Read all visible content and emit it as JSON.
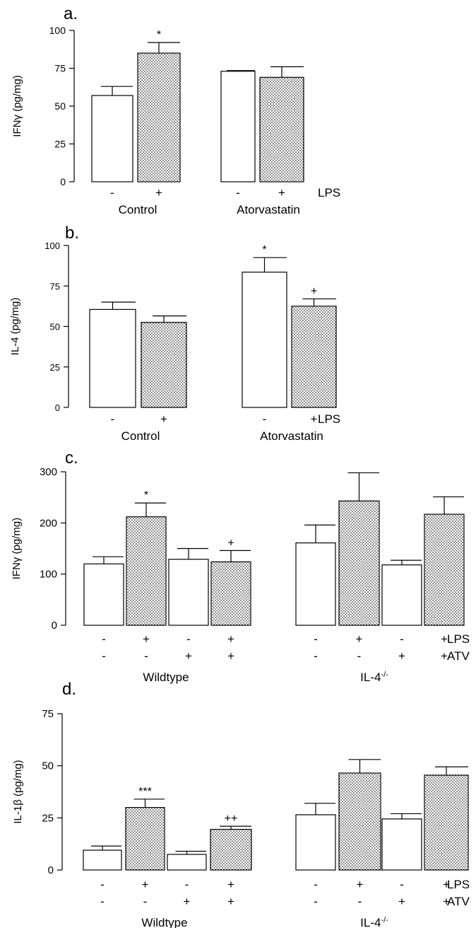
{
  "chart_data": [
    {
      "type": "bar",
      "panel_label": "a.",
      "ylabel": "IFNγ (pg/mg)",
      "ylim": [
        0,
        100
      ],
      "yticks": [
        0,
        25,
        50,
        75,
        100
      ],
      "groups": [
        {
          "name": "Control",
          "bars": [
            {
              "lps": "-",
              "value": 57,
              "error": 6,
              "sig": ""
            },
            {
              "lps": "+",
              "value": 85,
              "error": 7,
              "sig": "*"
            }
          ]
        },
        {
          "name": "Atorvastatin",
          "bars": [
            {
              "lps": "-",
              "value": 73,
              "error": 0.5,
              "sig": ""
            },
            {
              "lps": "+",
              "value": 69,
              "error": 7,
              "sig": ""
            }
          ]
        }
      ],
      "factor_labels": [
        "LPS"
      ]
    },
    {
      "type": "bar",
      "panel_label": "b.",
      "ylabel": "IL-4 (pg/mg)",
      "ylim": [
        0,
        100
      ],
      "yticks": [
        0,
        25,
        50,
        75,
        100
      ],
      "groups": [
        {
          "name": "Control",
          "bars": [
            {
              "lps": "-",
              "value": 60.5,
              "error": 4.5,
              "sig": ""
            },
            {
              "lps": "+",
              "value": 52.5,
              "error": 4,
              "sig": ""
            }
          ]
        },
        {
          "name": "Atorvastatin",
          "bars": [
            {
              "lps": "-",
              "value": 83.5,
              "error": 9,
              "sig": "*"
            },
            {
              "lps": "+",
              "value": 62.5,
              "error": 4.5,
              "sig": "+"
            }
          ]
        }
      ],
      "factor_labels": [
        "LPS"
      ]
    },
    {
      "type": "bar",
      "panel_label": "c.",
      "ylabel": "IFNγ (pg/mg)",
      "ylim": [
        0,
        300
      ],
      "yticks": [
        0,
        100,
        200,
        300
      ],
      "groups": [
        {
          "name": "Wildtype",
          "bars": [
            {
              "lps": "-",
              "atv": "-",
              "value": 120,
              "error": 14,
              "sig": ""
            },
            {
              "lps": "+",
              "atv": "-",
              "value": 212,
              "error": 27,
              "sig": "*"
            },
            {
              "lps": "-",
              "atv": "+",
              "value": 129,
              "error": 21,
              "sig": ""
            },
            {
              "lps": "+",
              "atv": "+",
              "value": 124,
              "error": 22,
              "sig": "+"
            }
          ]
        },
        {
          "name": "IL-4",
          "name_sup": "-/-",
          "bars": [
            {
              "lps": "-",
              "atv": "-",
              "value": 161,
              "error": 35,
              "sig": ""
            },
            {
              "lps": "+",
              "atv": "-",
              "value": 243,
              "error": 55,
              "sig": ""
            },
            {
              "lps": "-",
              "atv": "+",
              "value": 118,
              "error": 9,
              "sig": ""
            },
            {
              "lps": "+",
              "atv": "+",
              "value": 217,
              "error": 34,
              "sig": ""
            }
          ]
        }
      ],
      "factor_labels": [
        "LPS",
        "ATV"
      ]
    },
    {
      "type": "bar",
      "panel_label": "d.",
      "ylabel": "IL-1β (pg/mg)",
      "ylim": [
        0,
        75
      ],
      "yticks": [
        0,
        25,
        50,
        75
      ],
      "groups": [
        {
          "name": "Wildtype",
          "bars": [
            {
              "lps": "-",
              "atv": "-",
              "value": 9.5,
              "error": 2,
              "sig": ""
            },
            {
              "lps": "+",
              "atv": "-",
              "value": 30,
              "error": 4,
              "sig": "***"
            },
            {
              "lps": "-",
              "atv": "+",
              "value": 7.5,
              "error": 1.5,
              "sig": ""
            },
            {
              "lps": "+",
              "atv": "+",
              "value": 19.5,
              "error": 1.5,
              "sig": "++"
            }
          ]
        },
        {
          "name": "IL-4",
          "name_sup": "-/-",
          "bars": [
            {
              "lps": "-",
              "atv": "-",
              "value": 26.5,
              "error": 5.5,
              "sig": ""
            },
            {
              "lps": "+",
              "atv": "-",
              "value": 46.5,
              "error": 6.5,
              "sig": ""
            },
            {
              "lps": "-",
              "atv": "+",
              "value": 24.5,
              "error": 2.5,
              "sig": ""
            },
            {
              "lps": "+",
              "atv": "+",
              "value": 45.5,
              "error": 4,
              "sig": ""
            }
          ]
        }
      ],
      "factor_labels": [
        "LPS",
        "ATV"
      ]
    }
  ]
}
